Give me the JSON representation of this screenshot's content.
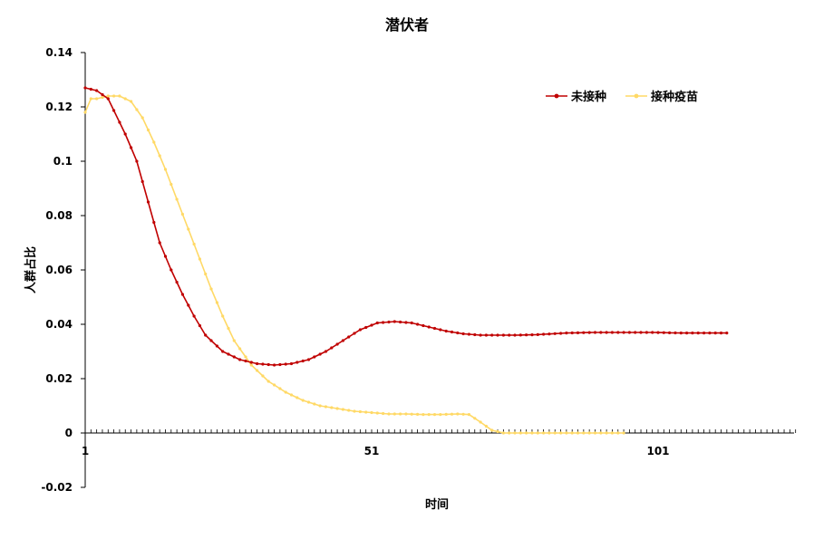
{
  "chart_data": {
    "type": "line",
    "title": "潜伏者",
    "xlabel": "时间",
    "ylabel": "人群占比",
    "x_tick_labels": [
      "1",
      "51",
      "101"
    ],
    "x_ticks": [
      1,
      51,
      101
    ],
    "xlim": [
      1,
      125
    ],
    "y_tick_labels": [
      "0.14",
      "0.12",
      "0.1",
      "0.08",
      "0.06",
      "0.04",
      "0.02",
      "0",
      "-0.02"
    ],
    "y_ticks": [
      0.14,
      0.12,
      0.1,
      0.08,
      0.06,
      0.04,
      0.02,
      0,
      -0.02
    ],
    "ylim": [
      -0.02,
      0.14
    ],
    "grid": false,
    "legend_position": "top-right",
    "series": [
      {
        "name": "未接种",
        "color": "#c00000",
        "marker": "diamond",
        "x": [
          1,
          3,
          5,
          8,
          10,
          12,
          14,
          16,
          18,
          20,
          22,
          25,
          28,
          31,
          34,
          37,
          40,
          43,
          46,
          49,
          52,
          55,
          58,
          61,
          64,
          67,
          70,
          73,
          76,
          80,
          85,
          90,
          95,
          100,
          105,
          113
        ],
        "y": [
          0.127,
          0.126,
          0.123,
          0.11,
          0.1,
          0.085,
          0.07,
          0.06,
          0.051,
          0.043,
          0.036,
          0.03,
          0.027,
          0.0255,
          0.025,
          0.0255,
          0.027,
          0.03,
          0.034,
          0.038,
          0.0405,
          0.041,
          0.0405,
          0.039,
          0.0375,
          0.0365,
          0.036,
          0.036,
          0.036,
          0.0362,
          0.0368,
          0.037,
          0.037,
          0.037,
          0.0368,
          0.0368
        ]
      },
      {
        "name": "接种疫苗",
        "color": "#ffd966",
        "marker": "diamond",
        "x": [
          1,
          2,
          3,
          5,
          7,
          9,
          11,
          13,
          15,
          17,
          19,
          21,
          23,
          25,
          27,
          30,
          33,
          36,
          39,
          42,
          45,
          48,
          51,
          54,
          57,
          60,
          63,
          66,
          68,
          70,
          72,
          74,
          76,
          80,
          85,
          90,
          95
        ],
        "y": [
          0.118,
          0.123,
          0.123,
          0.124,
          0.124,
          0.122,
          0.116,
          0.107,
          0.097,
          0.086,
          0.075,
          0.064,
          0.053,
          0.043,
          0.034,
          0.025,
          0.019,
          0.015,
          0.012,
          0.01,
          0.009,
          0.008,
          0.0075,
          0.007,
          0.007,
          0.0068,
          0.0068,
          0.007,
          0.0068,
          0.004,
          0.001,
          0,
          0,
          0,
          0,
          0,
          0
        ]
      }
    ]
  }
}
